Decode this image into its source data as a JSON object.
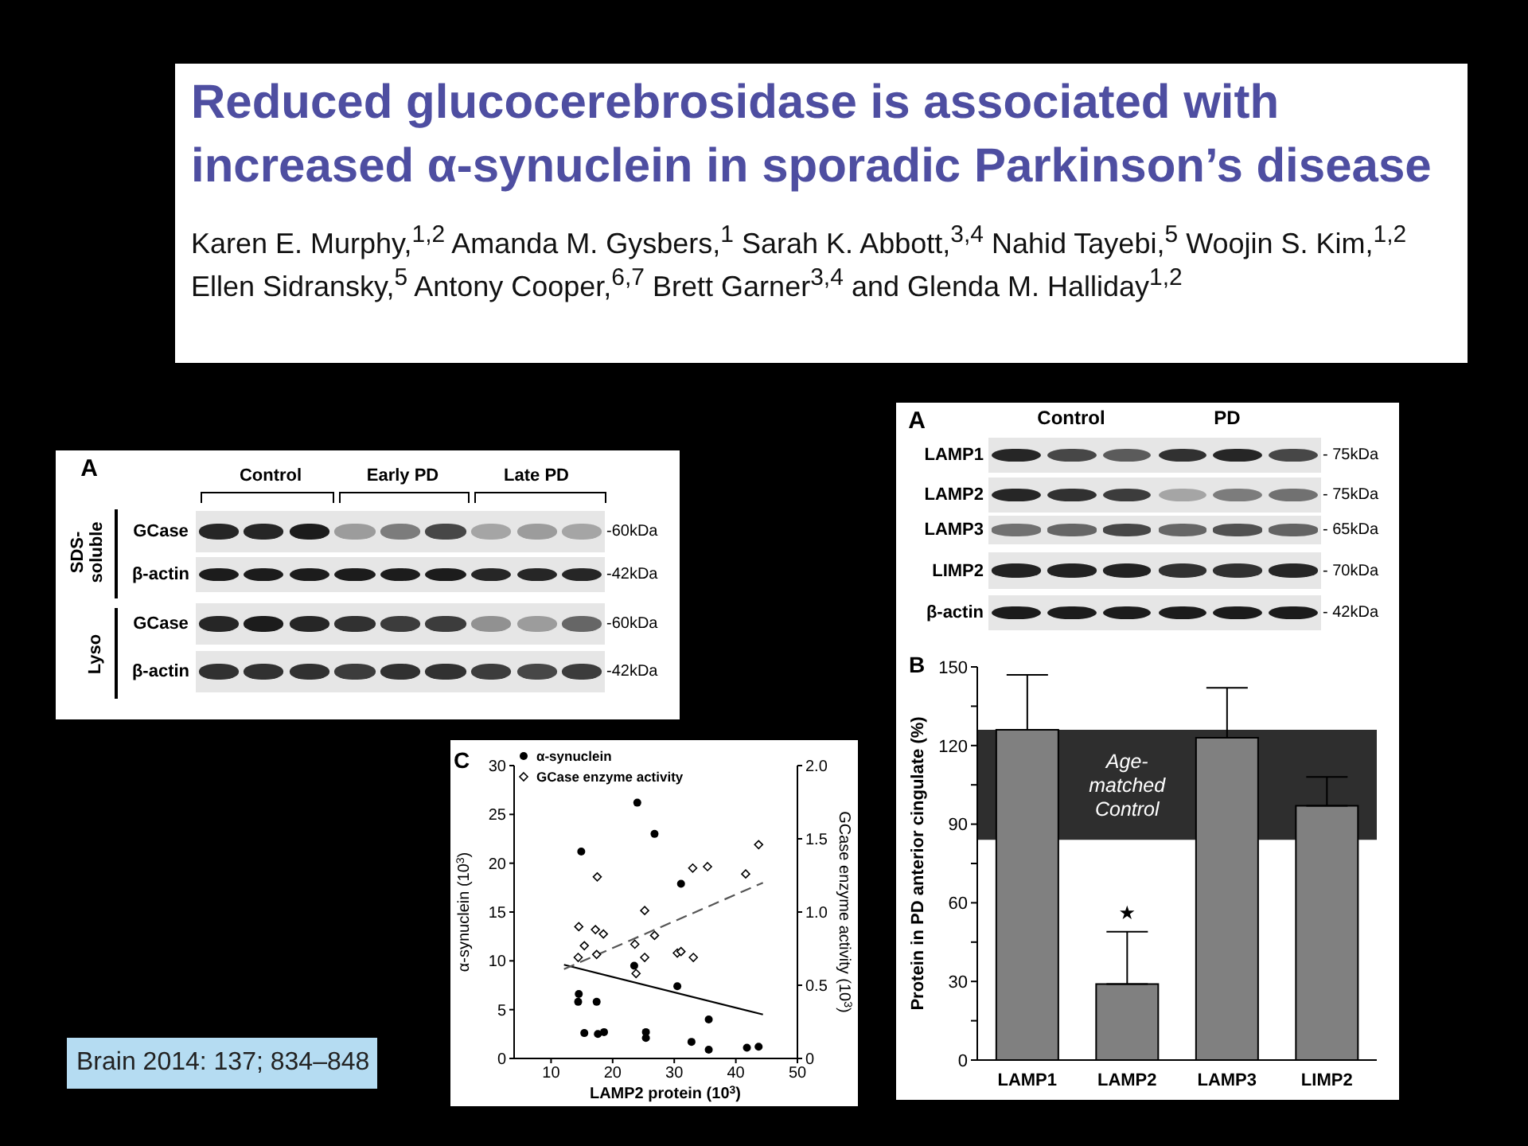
{
  "chart_data": [
    {
      "type": "other",
      "title": "Reduced glucocerebrosidase is associated with increased α-synuclein in sporadic Parkinson’s disease",
      "subtitle": "Karen E. Murphy,$^{1,2}$ Amanda M. Gysbers,$^{1}$ Sarah K. Abbott,$^{3,4}$ Nahid Tayebi,$^{5}$ Woojin S. Kim,$^{1,2}$ Ellen Sidransky,$^{5}$ Antony Cooper,$^{6,7}$ Brett Garner$^{3,4}$ and Glenda M. Halliday$^{1,2}$"
    },
    {
      "type": "other",
      "title": "A",
      "annotations": [
        "Control",
        "PD",
        "LAMP1",
        "LAMP2",
        "LAMP3",
        "LIMP2",
        "β-actin",
        "- 75kDa",
        "- 75kDa",
        "- 65kDa",
        "- 70kDa",
        "- 42kDa"
      ]
    },
    {
      "type": "other",
      "title": "A",
      "annotations": [
        "Control",
        "Early PD",
        "Late PD",
        "SDS-soluble",
        "Lyso",
        "GCase",
        "β-actin",
        "GCase",
        "β-actin",
        "-60kDa",
        "-42kDa",
        "-60kDa",
        "-42kDa"
      ]
    },
    {
      "type": "bar",
      "title": "B",
      "ylabel": "Protein in PD anterior cingulate (%)",
      "categories": [
        "LAMP1",
        "LAMP2",
        "LAMP3",
        "LIMP2"
      ],
      "values": [
        126,
        29,
        123,
        97
      ],
      "color": "#808080",
      "errors": [
        [
          126,
          147
        ],
        [
          29,
          49
        ],
        [
          123,
          142
        ],
        [
          97,
          108
        ]
      ],
      "ylim": [
        0,
        150
      ],
      "yticks": [
        0,
        {
          "value": 15,
          "label": null
        },
        30,
        {
          "value": 45,
          "label": null
        },
        60,
        {
          "value": 75,
          "label": null
        },
        90,
        {
          "value": 105,
          "label": null
        },
        120,
        {
          "value": 135,
          "label": null
        },
        150
      ],
      "bands": [
        {
          "axis": "y",
          "from": 84,
          "to": 126,
          "label": "Age-matched Control",
          "color": "#2e2e2e"
        }
      ],
      "annotations": [
        "★"
      ]
    },
    {
      "type": "scatter",
      "title": "C",
      "xlabel": "LAMP2 protein (10$^{3}$)",
      "ylabel": "α-synuclein (10$^{3}$)",
      "y2label": "GCase enzyme activity (10$^{3}$)",
      "xlim": [
        4,
        50
      ],
      "xticks": [
        10,
        20,
        30,
        40,
        50
      ],
      "ylim": [
        0,
        30
      ],
      "yticks": [
        0,
        5,
        10,
        15,
        20,
        25,
        30
      ],
      "y2lim": [
        0,
        2
      ],
      "y2ticks": [
        0,
        0.5,
        {
          "value": 1,
          "label": "1.0"
        },
        1.5,
        {
          "value": 2,
          "label": "2.0"
        }
      ],
      "legend": "top left",
      "series": [
        {
          "name": "α-synuclein",
          "type": "scatter",
          "color": "#000000",
          "marker": "circle",
          "x": [
            24,
            26.8,
            14.9,
            31.1,
            23.5,
            30.5,
            14.5,
            14.4,
            17.4,
            35.6,
            15.4,
            17.6,
            18.6,
            25.4,
            25.4,
            32.8,
            35.6,
            41.8,
            43.7
          ],
          "values": [
            26.2,
            23,
            21.2,
            17.9,
            9.5,
            7.4,
            6.6,
            5.8,
            5.8,
            4,
            2.6,
            2.5,
            2.7,
            2.7,
            2.1,
            1.7,
            0.9,
            1.1,
            1.2
          ]
        },
        {
          "name": "GCase enzyme activity",
          "type": "scatter",
          "color": "#000000",
          "marker": "diamond",
          "axis": "y2",
          "x": [
            43.7,
            35.4,
            33,
            41.6,
            17.5,
            25.2,
            14.5,
            17.2,
            18.5,
            26.8,
            15.4,
            23.6,
            17.4,
            14.4,
            25.2,
            30.5,
            31.1,
            33.1,
            23.8
          ],
          "values": [
            1.46,
            1.31,
            1.3,
            1.26,
            1.24,
            1.01,
            0.9,
            0.88,
            0.85,
            0.84,
            0.77,
            0.78,
            0.71,
            0.69,
            0.69,
            0.72,
            0.73,
            0.69,
            0.58
          ]
        },
        {
          "type": "line",
          "color": "#000000",
          "line_style": "solid",
          "x": [
            12.1,
            44.4
          ],
          "values": [
            9.6,
            4.5
          ]
        },
        {
          "type": "line",
          "color": "#555555",
          "line_style": "dashed",
          "axis": "y2",
          "x": [
            12.1,
            44.4
          ],
          "values": [
            0.61,
            1.2
          ]
        }
      ]
    },
    {
      "type": "other",
      "annotations": [
        "Brain 2014: 137; 834–848"
      ]
    }
  ]
}
